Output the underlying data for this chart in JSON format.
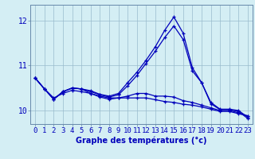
{
  "title": "",
  "xlabel": "Graphe des températures (°c)",
  "background_color": "#d4eef4",
  "line_color": "#0000bb",
  "x": [
    0,
    1,
    2,
    3,
    4,
    5,
    6,
    7,
    8,
    9,
    10,
    11,
    12,
    13,
    14,
    15,
    16,
    17,
    18,
    19,
    20,
    21,
    22,
    23
  ],
  "series1": [
    10.72,
    10.48,
    10.28,
    10.38,
    10.45,
    10.42,
    10.38,
    10.32,
    10.28,
    10.28,
    10.28,
    10.28,
    10.28,
    10.24,
    10.2,
    10.18,
    10.14,
    10.12,
    10.08,
    10.03,
    9.98,
    9.98,
    9.93,
    9.88
  ],
  "series2": [
    10.72,
    10.48,
    10.25,
    10.42,
    10.5,
    10.48,
    10.38,
    10.3,
    10.25,
    10.28,
    10.32,
    10.38,
    10.38,
    10.32,
    10.32,
    10.3,
    10.22,
    10.18,
    10.12,
    10.06,
    10.0,
    10.0,
    9.95,
    9.88
  ],
  "series3": [
    10.72,
    10.48,
    10.25,
    10.42,
    10.5,
    10.48,
    10.42,
    10.35,
    10.3,
    10.35,
    10.55,
    10.78,
    11.05,
    11.32,
    11.62,
    11.88,
    11.58,
    10.88,
    10.62,
    10.15,
    10.02,
    10.02,
    9.98,
    9.82
  ],
  "series4": [
    10.72,
    10.48,
    10.25,
    10.42,
    10.5,
    10.48,
    10.44,
    10.36,
    10.32,
    10.38,
    10.62,
    10.85,
    11.12,
    11.42,
    11.78,
    12.08,
    11.72,
    10.95,
    10.62,
    10.18,
    10.03,
    10.03,
    10.0,
    9.85
  ],
  "ylim": [
    9.7,
    12.35
  ],
  "yticks": [
    10,
    11,
    12
  ],
  "ytick_labels": [
    "10",
    "11",
    "12"
  ],
  "grid_color": "#99bbcc",
  "xlabel_fontsize": 7,
  "tick_fontsize": 6.5
}
